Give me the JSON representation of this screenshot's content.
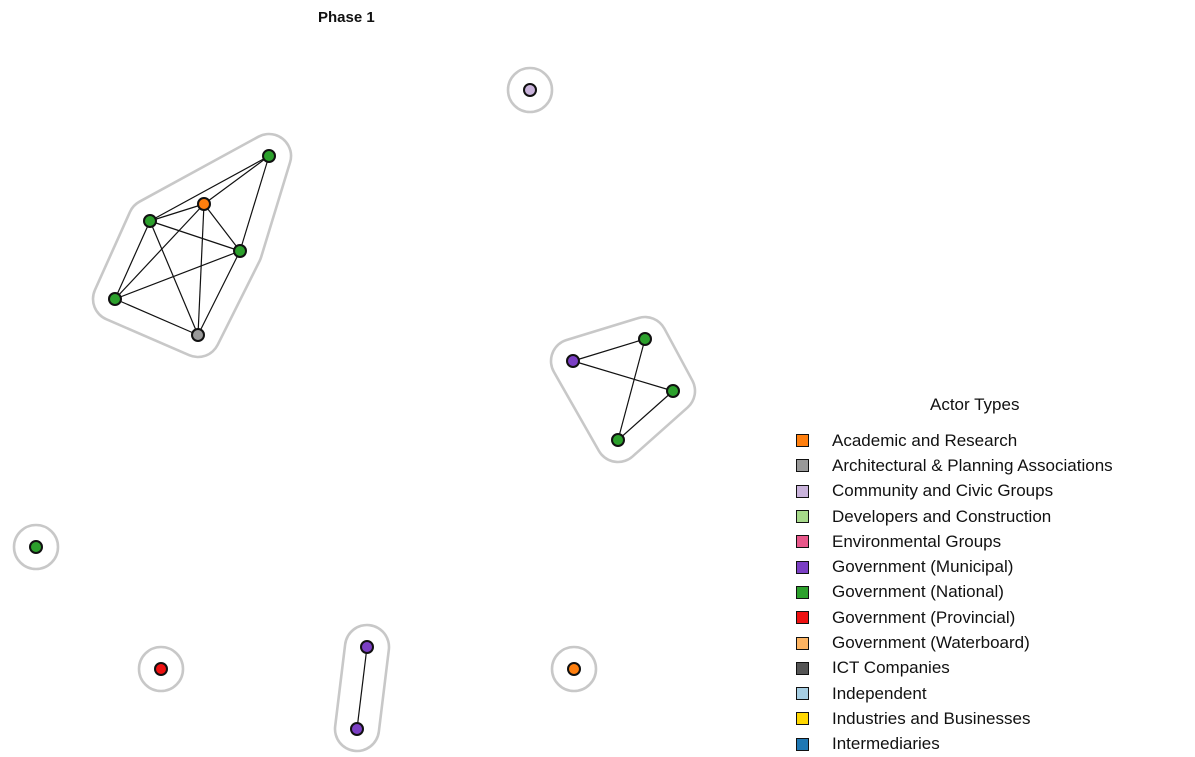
{
  "title": "Phase 1",
  "legend": {
    "title": "Actor Types",
    "items": [
      {
        "label": "Academic and Research",
        "color": "#ff7f0e"
      },
      {
        "label": "Architectural & Planning Associations",
        "color": "#999999"
      },
      {
        "label": "Community and Civic Groups",
        "color": "#c9b3db"
      },
      {
        "label": "Developers and Construction",
        "color": "#a6d98a"
      },
      {
        "label": "Environmental Groups",
        "color": "#e8578a"
      },
      {
        "label": "Government (Municipal)",
        "color": "#7b3fc4"
      },
      {
        "label": "Government (National)",
        "color": "#2ca02c"
      },
      {
        "label": "Government (Provincial)",
        "color": "#ee1111"
      },
      {
        "label": "Government (Waterboard)",
        "color": "#fdb462"
      },
      {
        "label": "ICT Companies",
        "color": "#555555"
      },
      {
        "label": "Independent",
        "color": "#a6cee3"
      },
      {
        "label": "Industries and Businesses",
        "color": "#ffd700"
      },
      {
        "label": "Intermediaries",
        "color": "#1f78b4"
      }
    ]
  },
  "network": {
    "nodes": [
      {
        "id": "c1",
        "type": "Community and Civic Groups"
      },
      {
        "id": "a1",
        "type": "Government (National)"
      },
      {
        "id": "a2",
        "type": "Academic and Research"
      },
      {
        "id": "a3",
        "type": "Government (National)"
      },
      {
        "id": "a4",
        "type": "Government (National)"
      },
      {
        "id": "a5",
        "type": "Government (National)"
      },
      {
        "id": "a6",
        "type": "Architectural & Planning Associations"
      },
      {
        "id": "b1",
        "type": "Government (Municipal)"
      },
      {
        "id": "b2",
        "type": "Government (National)"
      },
      {
        "id": "b3",
        "type": "Government (National)"
      },
      {
        "id": "b4",
        "type": "Government (National)"
      },
      {
        "id": "d1",
        "type": "Government (National)"
      },
      {
        "id": "e1",
        "type": "Government (Provincial)"
      },
      {
        "id": "f1",
        "type": "Government (Municipal)"
      },
      {
        "id": "f2",
        "type": "Government (Municipal)"
      },
      {
        "id": "g1",
        "type": "Academic and Research"
      }
    ],
    "edges": [
      [
        "a1",
        "a2"
      ],
      [
        "a1",
        "a3"
      ],
      [
        "a1",
        "a4"
      ],
      [
        "a2",
        "a3"
      ],
      [
        "a2",
        "a4"
      ],
      [
        "a2",
        "a5"
      ],
      [
        "a2",
        "a6"
      ],
      [
        "a3",
        "a4"
      ],
      [
        "a3",
        "a5"
      ],
      [
        "a3",
        "a6"
      ],
      [
        "a4",
        "a5"
      ],
      [
        "a4",
        "a6"
      ],
      [
        "a5",
        "a6"
      ],
      [
        "b1",
        "b2"
      ],
      [
        "b1",
        "b3"
      ],
      [
        "b2",
        "b4"
      ],
      [
        "b3",
        "b4"
      ],
      [
        "f1",
        "f2"
      ]
    ],
    "groups": [
      [
        "c1"
      ],
      [
        "a1",
        "a2",
        "a3",
        "a4",
        "a5",
        "a6"
      ],
      [
        "b1",
        "b2",
        "b3",
        "b4"
      ],
      [
        "d1"
      ],
      [
        "e1"
      ],
      [
        "f1",
        "f2"
      ],
      [
        "g1"
      ]
    ]
  }
}
